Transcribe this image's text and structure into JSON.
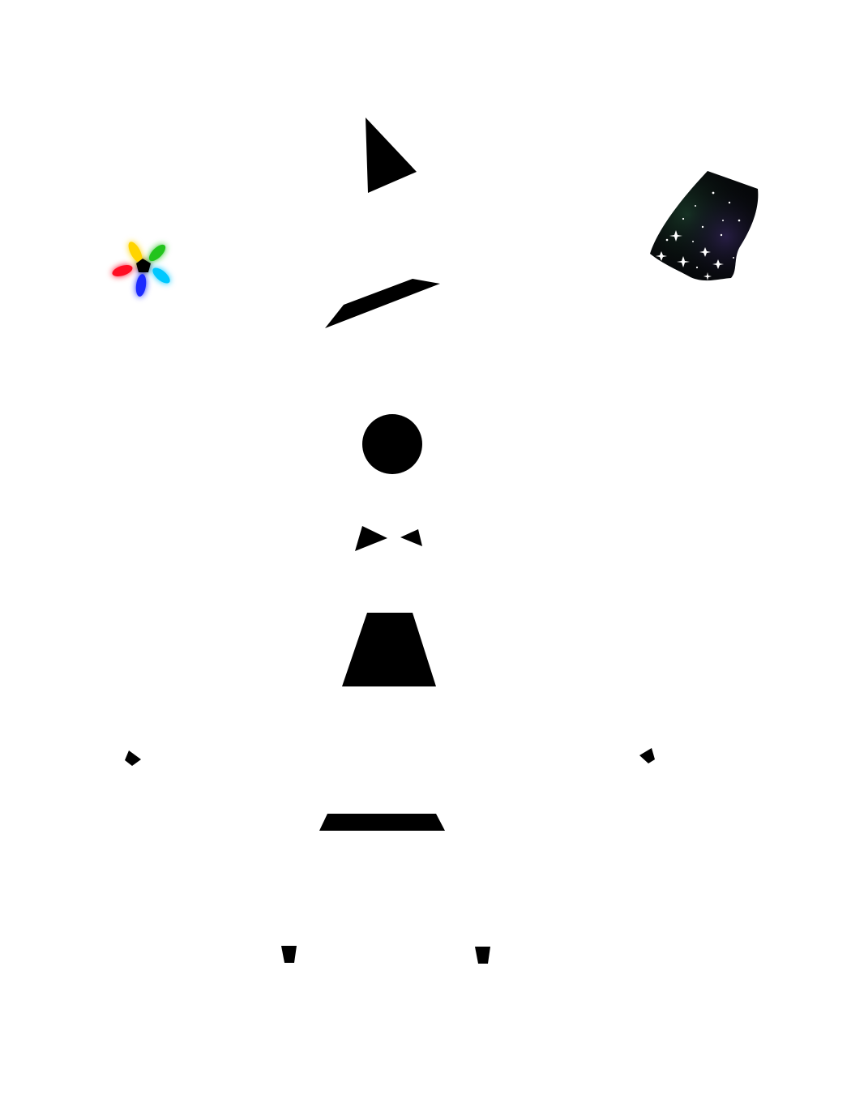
{
  "puzzle": {
    "background": "#ffffff",
    "piece_color": "#000000",
    "pieces": [
      {
        "name": "hat-triangle",
        "shape": "triangle",
        "interactable": true
      },
      {
        "name": "hat-brim-bar",
        "shape": "parallelogram",
        "interactable": true
      },
      {
        "name": "head-circle",
        "shape": "circle",
        "interactable": true
      },
      {
        "name": "bow-tie-left",
        "shape": "triangle",
        "interactable": true
      },
      {
        "name": "bow-tie-right",
        "shape": "triangle",
        "interactable": true
      },
      {
        "name": "body-trapezoid",
        "shape": "trapezoid",
        "interactable": true
      },
      {
        "name": "left-hand-quad",
        "shape": "quadrilateral",
        "interactable": true
      },
      {
        "name": "right-hand-quad",
        "shape": "quadrilateral",
        "interactable": true
      },
      {
        "name": "belt-trapezoid",
        "shape": "trapezoid",
        "interactable": true
      },
      {
        "name": "left-foot",
        "shape": "trapezoid",
        "interactable": true
      },
      {
        "name": "right-foot",
        "shape": "trapezoid",
        "interactable": true
      }
    ]
  },
  "decorations": {
    "flower": {
      "icon": "rainbow-flower-icon",
      "center_color": "#000000",
      "petal_colors": [
        "#ffd400",
        "#22c41a",
        "#00c8ff",
        "#1a2cff",
        "#ff1020"
      ]
    },
    "galaxy_cloth": {
      "icon": "starry-galaxy-cloth-icon",
      "colors": [
        "#06080a",
        "#1a3d2a",
        "#2a1f4a",
        "#ffffff"
      ]
    }
  }
}
